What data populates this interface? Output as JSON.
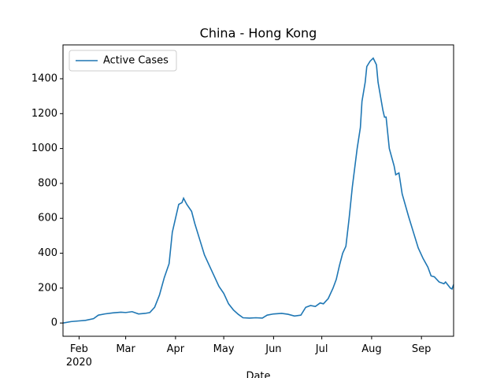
{
  "chart_data": {
    "type": "line",
    "title": "China - Hong Kong",
    "x_label": "Date",
    "x": [
      "2020-01-22",
      "2020-01-27",
      "2020-02-01",
      "2020-02-05",
      "2020-02-10",
      "2020-02-13",
      "2020-02-17",
      "2020-02-22",
      "2020-02-27",
      "2020-03-01",
      "2020-03-05",
      "2020-03-09",
      "2020-03-13",
      "2020-03-16",
      "2020-03-19",
      "2020-03-22",
      "2020-03-25",
      "2020-03-28",
      "2020-03-30",
      "2020-04-01",
      "2020-04-03",
      "2020-04-05",
      "2020-04-06",
      "2020-04-08",
      "2020-04-11",
      "2020-04-13",
      "2020-04-16",
      "2020-04-19",
      "2020-04-22",
      "2020-04-25",
      "2020-04-28",
      "2020-05-01",
      "2020-05-04",
      "2020-05-07",
      "2020-05-10",
      "2020-05-13",
      "2020-05-17",
      "2020-05-21",
      "2020-05-25",
      "2020-05-28",
      "2020-06-01",
      "2020-06-06",
      "2020-06-10",
      "2020-06-14",
      "2020-06-18",
      "2020-06-21",
      "2020-06-24",
      "2020-06-27",
      "2020-06-30",
      "2020-07-02",
      "2020-07-05",
      "2020-07-08",
      "2020-07-10",
      "2020-07-12",
      "2020-07-14",
      "2020-07-16",
      "2020-07-18",
      "2020-07-20",
      "2020-07-23",
      "2020-07-25",
      "2020-07-26",
      "2020-07-28",
      "2020-07-29",
      "2020-07-31",
      "2020-08-02",
      "2020-08-04",
      "2020-08-05",
      "2020-08-08",
      "2020-08-09",
      "2020-08-10",
      "2020-08-12",
      "2020-08-15",
      "2020-08-16",
      "2020-08-18",
      "2020-08-20",
      "2020-08-24",
      "2020-08-27",
      "2020-08-30",
      "2020-09-02",
      "2020-09-05",
      "2020-09-07",
      "2020-09-09",
      "2020-09-12",
      "2020-09-15",
      "2020-09-16",
      "2020-09-19",
      "2020-09-20",
      "2020-09-21"
    ],
    "series": [
      {
        "name": "Active Cases",
        "color": "#1f77b4",
        "values": [
          0,
          8,
          12,
          15,
          25,
          45,
          52,
          58,
          62,
          60,
          65,
          52,
          55,
          60,
          90,
          160,
          260,
          340,
          520,
          600,
          680,
          690,
          715,
          680,
          640,
          570,
          480,
          390,
          330,
          270,
          210,
          170,
          110,
          75,
          50,
          30,
          28,
          30,
          28,
          45,
          52,
          55,
          50,
          40,
          45,
          90,
          100,
          95,
          115,
          110,
          140,
          200,
          250,
          330,
          400,
          440,
          600,
          780,
          1000,
          1120,
          1270,
          1380,
          1470,
          1500,
          1518,
          1480,
          1380,
          1220,
          1180,
          1180,
          1000,
          900,
          850,
          860,
          740,
          610,
          520,
          430,
          370,
          320,
          270,
          265,
          235,
          225,
          235,
          200,
          195,
          220
        ]
      }
    ],
    "xlim": [
      "2020-01-22",
      "2020-09-21"
    ],
    "xticks": [
      {
        "value": "2020-02-01",
        "label": "Feb\n2020"
      },
      {
        "value": "2020-03-01",
        "label": "Mar"
      },
      {
        "value": "2020-04-01",
        "label": "Apr"
      },
      {
        "value": "2020-05-01",
        "label": "May"
      },
      {
        "value": "2020-06-01",
        "label": "Jun"
      },
      {
        "value": "2020-07-01",
        "label": "Jul"
      },
      {
        "value": "2020-08-01",
        "label": "Aug"
      },
      {
        "value": "2020-09-01",
        "label": "Sep"
      }
    ],
    "ylim": [
      -76,
      1594
    ],
    "yticks": [
      0,
      200,
      400,
      600,
      800,
      1000,
      1200,
      1400
    ],
    "legend": "upper left"
  }
}
